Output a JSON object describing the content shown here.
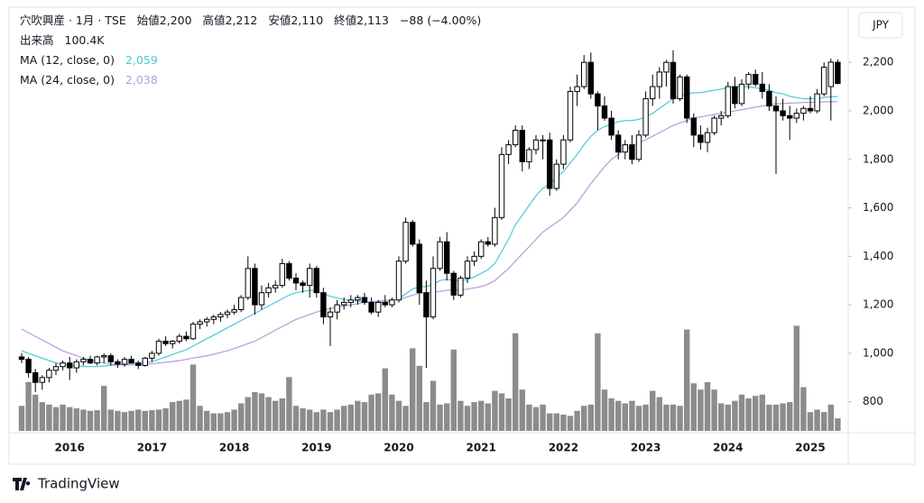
{
  "chart_data": {
    "type": "candlestick",
    "legend": {
      "symbol": "穴吹興産 · 1月 · TSE",
      "ohlc": [
        {
          "name": "始値",
          "value": 2200,
          "label": "2,200"
        },
        {
          "name": "高値",
          "value": 2212,
          "label": "2,212"
        },
        {
          "name": "安値",
          "value": 2110,
          "label": "2,110"
        },
        {
          "name": "終値",
          "value": 2113,
          "label": "2,113"
        }
      ],
      "change": {
        "value": -88,
        "label": "−88"
      },
      "change_pct": {
        "value": -4.0,
        "label": "(−4.00%)"
      },
      "volume": {
        "name": "出来高",
        "value": 100.4,
        "label": "100.4K"
      }
    },
    "currency": "JPY",
    "brand": "TradingView",
    "up_color": "#ffffff",
    "down_color": "#000000",
    "volume_color": "#8c8c8c",
    "categories": [
      null,
      null,
      null,
      null,
      null,
      null,
      null,
      "2016",
      null,
      null,
      null,
      null,
      null,
      null,
      null,
      null,
      null,
      null,
      null,
      "2017",
      null,
      null,
      null,
      null,
      null,
      null,
      null,
      null,
      null,
      null,
      null,
      "2018",
      null,
      null,
      null,
      null,
      null,
      null,
      null,
      null,
      null,
      null,
      null,
      "2019",
      null,
      null,
      null,
      null,
      null,
      null,
      null,
      null,
      null,
      null,
      null,
      "2020",
      null,
      null,
      null,
      null,
      null,
      null,
      null,
      null,
      null,
      null,
      null,
      "2021",
      null,
      null,
      null,
      null,
      null,
      null,
      null,
      null,
      null,
      null,
      null,
      "2022",
      null,
      null,
      null,
      null,
      null,
      null,
      null,
      null,
      null,
      null,
      null,
      "2023",
      null,
      null,
      null,
      null,
      null,
      null,
      null,
      null,
      null,
      null,
      null,
      "2024",
      null,
      null,
      null,
      null,
      null,
      null,
      null,
      null,
      null,
      null,
      null,
      "2025",
      null,
      null,
      null,
      null
    ],
    "ohlc": [
      [
        985,
        1000,
        960,
        975
      ],
      [
        975,
        985,
        900,
        920
      ],
      [
        920,
        935,
        840,
        880
      ],
      [
        880,
        910,
        850,
        900
      ],
      [
        900,
        940,
        880,
        930
      ],
      [
        930,
        960,
        910,
        945
      ],
      [
        945,
        970,
        930,
        960
      ],
      [
        960,
        985,
        890,
        940
      ],
      [
        940,
        975,
        920,
        965
      ],
      [
        965,
        985,
        950,
        975
      ],
      [
        975,
        990,
        955,
        960
      ],
      [
        960,
        990,
        950,
        985
      ],
      [
        985,
        1000,
        960,
        990
      ],
      [
        990,
        1000,
        950,
        965
      ],
      [
        965,
        975,
        940,
        955
      ],
      [
        955,
        985,
        945,
        975
      ],
      [
        975,
        990,
        960,
        960
      ],
      [
        960,
        970,
        935,
        950
      ],
      [
        950,
        985,
        945,
        980
      ],
      [
        980,
        1010,
        965,
        1000
      ],
      [
        1000,
        1060,
        990,
        1050
      ],
      [
        1050,
        1070,
        1030,
        1040
      ],
      [
        1040,
        1055,
        1020,
        1050
      ],
      [
        1050,
        1080,
        1040,
        1070
      ],
      [
        1070,
        1090,
        1050,
        1060
      ],
      [
        1060,
        1130,
        1055,
        1120
      ],
      [
        1120,
        1140,
        1100,
        1130
      ],
      [
        1130,
        1150,
        1110,
        1140
      ],
      [
        1140,
        1160,
        1120,
        1150
      ],
      [
        1150,
        1170,
        1130,
        1160
      ],
      [
        1160,
        1180,
        1145,
        1170
      ],
      [
        1170,
        1200,
        1160,
        1180
      ],
      [
        1180,
        1240,
        1170,
        1230
      ],
      [
        1230,
        1400,
        1220,
        1350
      ],
      [
        1350,
        1370,
        1160,
        1200
      ],
      [
        1200,
        1280,
        1180,
        1250
      ],
      [
        1250,
        1290,
        1230,
        1270
      ],
      [
        1270,
        1300,
        1250,
        1280
      ],
      [
        1280,
        1390,
        1270,
        1370
      ],
      [
        1370,
        1380,
        1300,
        1310
      ],
      [
        1310,
        1330,
        1260,
        1290
      ],
      [
        1290,
        1300,
        1250,
        1280
      ],
      [
        1280,
        1370,
        1230,
        1350
      ],
      [
        1350,
        1360,
        1230,
        1250
      ],
      [
        1250,
        1270,
        1120,
        1150
      ],
      [
        1150,
        1190,
        1030,
        1170
      ],
      [
        1170,
        1220,
        1140,
        1200
      ],
      [
        1200,
        1230,
        1180,
        1210
      ],
      [
        1210,
        1240,
        1190,
        1220
      ],
      [
        1220,
        1240,
        1200,
        1230
      ],
      [
        1230,
        1250,
        1200,
        1210
      ],
      [
        1210,
        1230,
        1160,
        1170
      ],
      [
        1170,
        1220,
        1150,
        1210
      ],
      [
        1210,
        1240,
        1190,
        1200
      ],
      [
        1200,
        1230,
        1190,
        1220
      ],
      [
        1220,
        1400,
        1210,
        1380
      ],
      [
        1380,
        1560,
        1370,
        1540
      ],
      [
        1540,
        1550,
        1440,
        1450
      ],
      [
        1450,
        1470,
        1200,
        1250
      ],
      [
        1250,
        1300,
        940,
        1150
      ],
      [
        1150,
        1400,
        1140,
        1350
      ],
      [
        1350,
        1480,
        1340,
        1460
      ],
      [
        1460,
        1500,
        1300,
        1330
      ],
      [
        1330,
        1340,
        1220,
        1240
      ],
      [
        1240,
        1320,
        1230,
        1310
      ],
      [
        1310,
        1400,
        1290,
        1380
      ],
      [
        1380,
        1420,
        1360,
        1400
      ],
      [
        1400,
        1470,
        1390,
        1460
      ],
      [
        1460,
        1480,
        1440,
        1450
      ],
      [
        1450,
        1600,
        1440,
        1560
      ],
      [
        1560,
        1850,
        1550,
        1820
      ],
      [
        1820,
        1880,
        1780,
        1860
      ],
      [
        1860,
        1940,
        1850,
        1920
      ],
      [
        1920,
        1940,
        1750,
        1790
      ],
      [
        1790,
        1850,
        1760,
        1840
      ],
      [
        1840,
        1900,
        1820,
        1880
      ],
      [
        1880,
        1900,
        1800,
        1880
      ],
      [
        1880,
        1910,
        1650,
        1680
      ],
      [
        1680,
        1800,
        1670,
        1780
      ],
      [
        1780,
        1900,
        1760,
        1880
      ],
      [
        1880,
        2100,
        1870,
        2080
      ],
      [
        2080,
        2150,
        2020,
        2100
      ],
      [
        2100,
        2230,
        2090,
        2200
      ],
      [
        2200,
        2240,
        2050,
        2070
      ],
      [
        2070,
        2080,
        1920,
        2020
      ],
      [
        2020,
        2060,
        1960,
        1970
      ],
      [
        1970,
        2000,
        1880,
        1900
      ],
      [
        1900,
        1920,
        1800,
        1830
      ],
      [
        1830,
        1880,
        1800,
        1860
      ],
      [
        1860,
        1900,
        1780,
        1800
      ],
      [
        1800,
        1920,
        1790,
        1900
      ],
      [
        1900,
        2080,
        1890,
        2050
      ],
      [
        2050,
        2150,
        2020,
        2100
      ],
      [
        2100,
        2180,
        2050,
        2160
      ],
      [
        2160,
        2210,
        2100,
        2200
      ],
      [
        2200,
        2250,
        2030,
        2050
      ],
      [
        2050,
        2150,
        2040,
        2140
      ],
      [
        2140,
        2150,
        1950,
        1970
      ],
      [
        1970,
        1990,
        1850,
        1900
      ],
      [
        1900,
        1940,
        1840,
        1870
      ],
      [
        1870,
        1930,
        1830,
        1910
      ],
      [
        1910,
        1980,
        1900,
        1970
      ],
      [
        1970,
        2000,
        1940,
        1980
      ],
      [
        1980,
        2120,
        1970,
        2100
      ],
      [
        2100,
        2140,
        2010,
        2030
      ],
      [
        2030,
        2130,
        2020,
        2110
      ],
      [
        2110,
        2160,
        2090,
        2150
      ],
      [
        2150,
        2170,
        2100,
        2110
      ],
      [
        2110,
        2160,
        2050,
        2080
      ],
      [
        2080,
        2110,
        2000,
        2020
      ],
      [
        2020,
        2060,
        1740,
        2000
      ],
      [
        2000,
        2050,
        1960,
        1980
      ],
      [
        1980,
        2020,
        1880,
        1970
      ],
      [
        1970,
        2010,
        1950,
        1990
      ],
      [
        1990,
        2020,
        1960,
        2010
      ],
      [
        2010,
        2060,
        1990,
        2000
      ],
      [
        2000,
        2090,
        1990,
        2070
      ],
      [
        2070,
        2200,
        2060,
        2180
      ],
      [
        2100,
        2215,
        1960,
        2201
      ],
      [
        2200,
        2212,
        2110,
        2113
      ]
    ],
    "volume": [
      200,
      390,
      290,
      230,
      210,
      190,
      210,
      190,
      180,
      170,
      160,
      165,
      360,
      170,
      160,
      150,
      160,
      170,
      160,
      165,
      170,
      180,
      230,
      240,
      250,
      530,
      200,
      160,
      140,
      140,
      150,
      170,
      220,
      270,
      310,
      300,
      270,
      240,
      260,
      430,
      200,
      180,
      170,
      150,
      170,
      150,
      170,
      200,
      210,
      240,
      230,
      290,
      300,
      500,
      290,
      240,
      200,
      660,
      520,
      230,
      400,
      210,
      220,
      650,
      240,
      200,
      230,
      240,
      220,
      320,
      300,
      260,
      780,
      330,
      210,
      190,
      210,
      140,
      140,
      130,
      120,
      160,
      200,
      210,
      780,
      330,
      260,
      240,
      220,
      240,
      200,
      210,
      320,
      270,
      210,
      210,
      200,
      810,
      380,
      330,
      390,
      330,
      220,
      210,
      240,
      290,
      260,
      280,
      290,
      210,
      210,
      220,
      230,
      840,
      350,
      150,
      170,
      150,
      210,
      100.4
    ],
    "vlim": [
      0,
      850
    ],
    "series": [
      {
        "name": "MA (12, close, 0)",
        "color": "#4fc8d8",
        "last": {
          "value": 2059,
          "label": "2,059"
        },
        "values": [
          1010,
          1000,
          990,
          980,
          970,
          960,
          955,
          950,
          948,
          946,
          945,
          945,
          948,
          950,
          952,
          955,
          958,
          960,
          962,
          965,
          975,
          985,
          995,
          1005,
          1015,
          1030,
          1045,
          1060,
          1075,
          1090,
          1105,
          1120,
          1135,
          1150,
          1165,
          1180,
          1195,
          1210,
          1225,
          1240,
          1250,
          1255,
          1260,
          1255,
          1245,
          1235,
          1228,
          1222,
          1218,
          1215,
          1213,
          1210,
          1210,
          1212,
          1215,
          1225,
          1245,
          1265,
          1275,
          1275,
          1285,
          1300,
          1305,
          1300,
          1300,
          1305,
          1315,
          1330,
          1345,
          1370,
          1420,
          1470,
          1530,
          1570,
          1610,
          1650,
          1680,
          1700,
          1725,
          1750,
          1785,
          1820,
          1860,
          1895,
          1920,
          1935,
          1945,
          1955,
          1960,
          1960,
          1965,
          1975,
          1990,
          2010,
          2030,
          2050,
          2060,
          2070,
          2075,
          2075,
          2080,
          2085,
          2090,
          2095,
          2100,
          2100,
          2100,
          2095,
          2090,
          2085,
          2075,
          2070,
          2060,
          2055,
          2050,
          2050,
          2052,
          2055,
          2058,
          2059
        ]
      },
      {
        "name": "MA (24, close, 0)",
        "color": "#b39ddb",
        "last": {
          "value": 2038,
          "label": "2,038"
        },
        "values": [
          1100,
          1085,
          1070,
          1055,
          1040,
          1025,
          1010,
          1000,
          990,
          980,
          972,
          965,
          960,
          956,
          953,
          952,
          952,
          953,
          955,
          957,
          960,
          963,
          966,
          970,
          975,
          980,
          985,
          990,
          996,
          1003,
          1010,
          1020,
          1030,
          1040,
          1050,
          1065,
          1080,
          1095,
          1110,
          1125,
          1140,
          1150,
          1160,
          1170,
          1180,
          1185,
          1190,
          1195,
          1200,
          1205,
          1210,
          1213,
          1215,
          1218,
          1220,
          1222,
          1230,
          1240,
          1248,
          1250,
          1250,
          1255,
          1260,
          1260,
          1262,
          1265,
          1270,
          1275,
          1285,
          1300,
          1325,
          1350,
          1380,
          1410,
          1440,
          1470,
          1500,
          1520,
          1540,
          1560,
          1590,
          1620,
          1660,
          1700,
          1735,
          1770,
          1800,
          1820,
          1840,
          1855,
          1870,
          1880,
          1895,
          1910,
          1925,
          1940,
          1950,
          1960,
          1970,
          1975,
          1980,
          1985,
          1990,
          1995,
          2000,
          2005,
          2010,
          2015,
          2020,
          2025,
          2028,
          2030,
          2032,
          2033,
          2035,
          2035,
          2036,
          2037,
          2037,
          2038
        ]
      }
    ],
    "ylim": [
      680,
      2420
    ],
    "yticks": [
      800,
      {
        "value": 1000,
        "label": "1,000"
      },
      {
        "value": 1200,
        "label": "1,200"
      },
      {
        "value": 1400,
        "label": "1,400"
      },
      {
        "value": 1600,
        "label": "1,600"
      },
      {
        "value": 1800,
        "label": "1,800"
      },
      {
        "value": 2000,
        "label": "2,000"
      },
      {
        "value": 2200,
        "label": "2,200"
      }
    ],
    "grid": false
  }
}
